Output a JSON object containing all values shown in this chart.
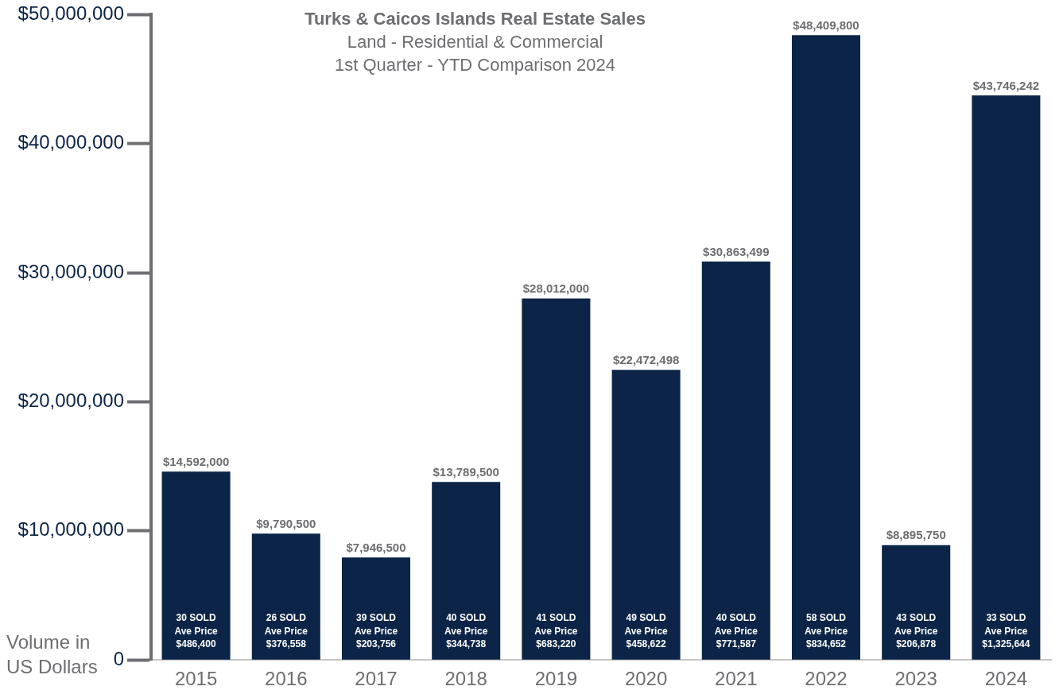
{
  "chart_data": {
    "type": "bar",
    "title": "Turks & Caicos Islands Real Estate Sales",
    "subtitle": "Land - Residential & Commercial\n1st Quarter - YTD Comparison 2024",
    "ylabel": "Volume in US Dollars",
    "categories": [
      "2015",
      "2016",
      "2017",
      "2018",
      "2019",
      "2020",
      "2021",
      "2022",
      "2023",
      "2024"
    ],
    "values": [
      14592000,
      9790500,
      7946500,
      13789500,
      28012000,
      22472498,
      30863499,
      48409800,
      8895750,
      43746242
    ],
    "value_labels": [
      "$14,592,000",
      "$9,790,500",
      "$7,946,500",
      "$13,789,500",
      "$28,012,000",
      "$22,472,498",
      "$30,863,499",
      "$48,409,800",
      "$8,895,750",
      "$43,746,242"
    ],
    "color": "#0b2447",
    "ylim": [
      0,
      50000000
    ],
    "yticks": [
      {
        "value": 0,
        "label": "0"
      },
      {
        "value": 10000000,
        "label": "$10,000,000"
      },
      {
        "value": 20000000,
        "label": "$20,000,000"
      },
      {
        "value": 30000000,
        "label": "$30,000,000"
      },
      {
        "value": 40000000,
        "label": "$40,000,000"
      },
      {
        "value": 50000000,
        "label": "$50,000,000"
      }
    ],
    "grid": false,
    "legend": false,
    "annotations": [
      "30 SOLD\nAve Price\n$486,400",
      "26 SOLD\nAve Price\n$376,558",
      "39 SOLD\nAve Price\n$203,756",
      "40 SOLD\nAve Price\n$344,738",
      "41 SOLD\nAve Price\n$683,220",
      "49 SOLD\nAve Price\n$458,622",
      "40 SOLD\nAve Price\n$771,587",
      "58 SOLD\nAve Price\n$834,652",
      "43 SOLD\nAve Price\n$206,878",
      "33 SOLD\nAve Price\n$1,325,644"
    ]
  }
}
